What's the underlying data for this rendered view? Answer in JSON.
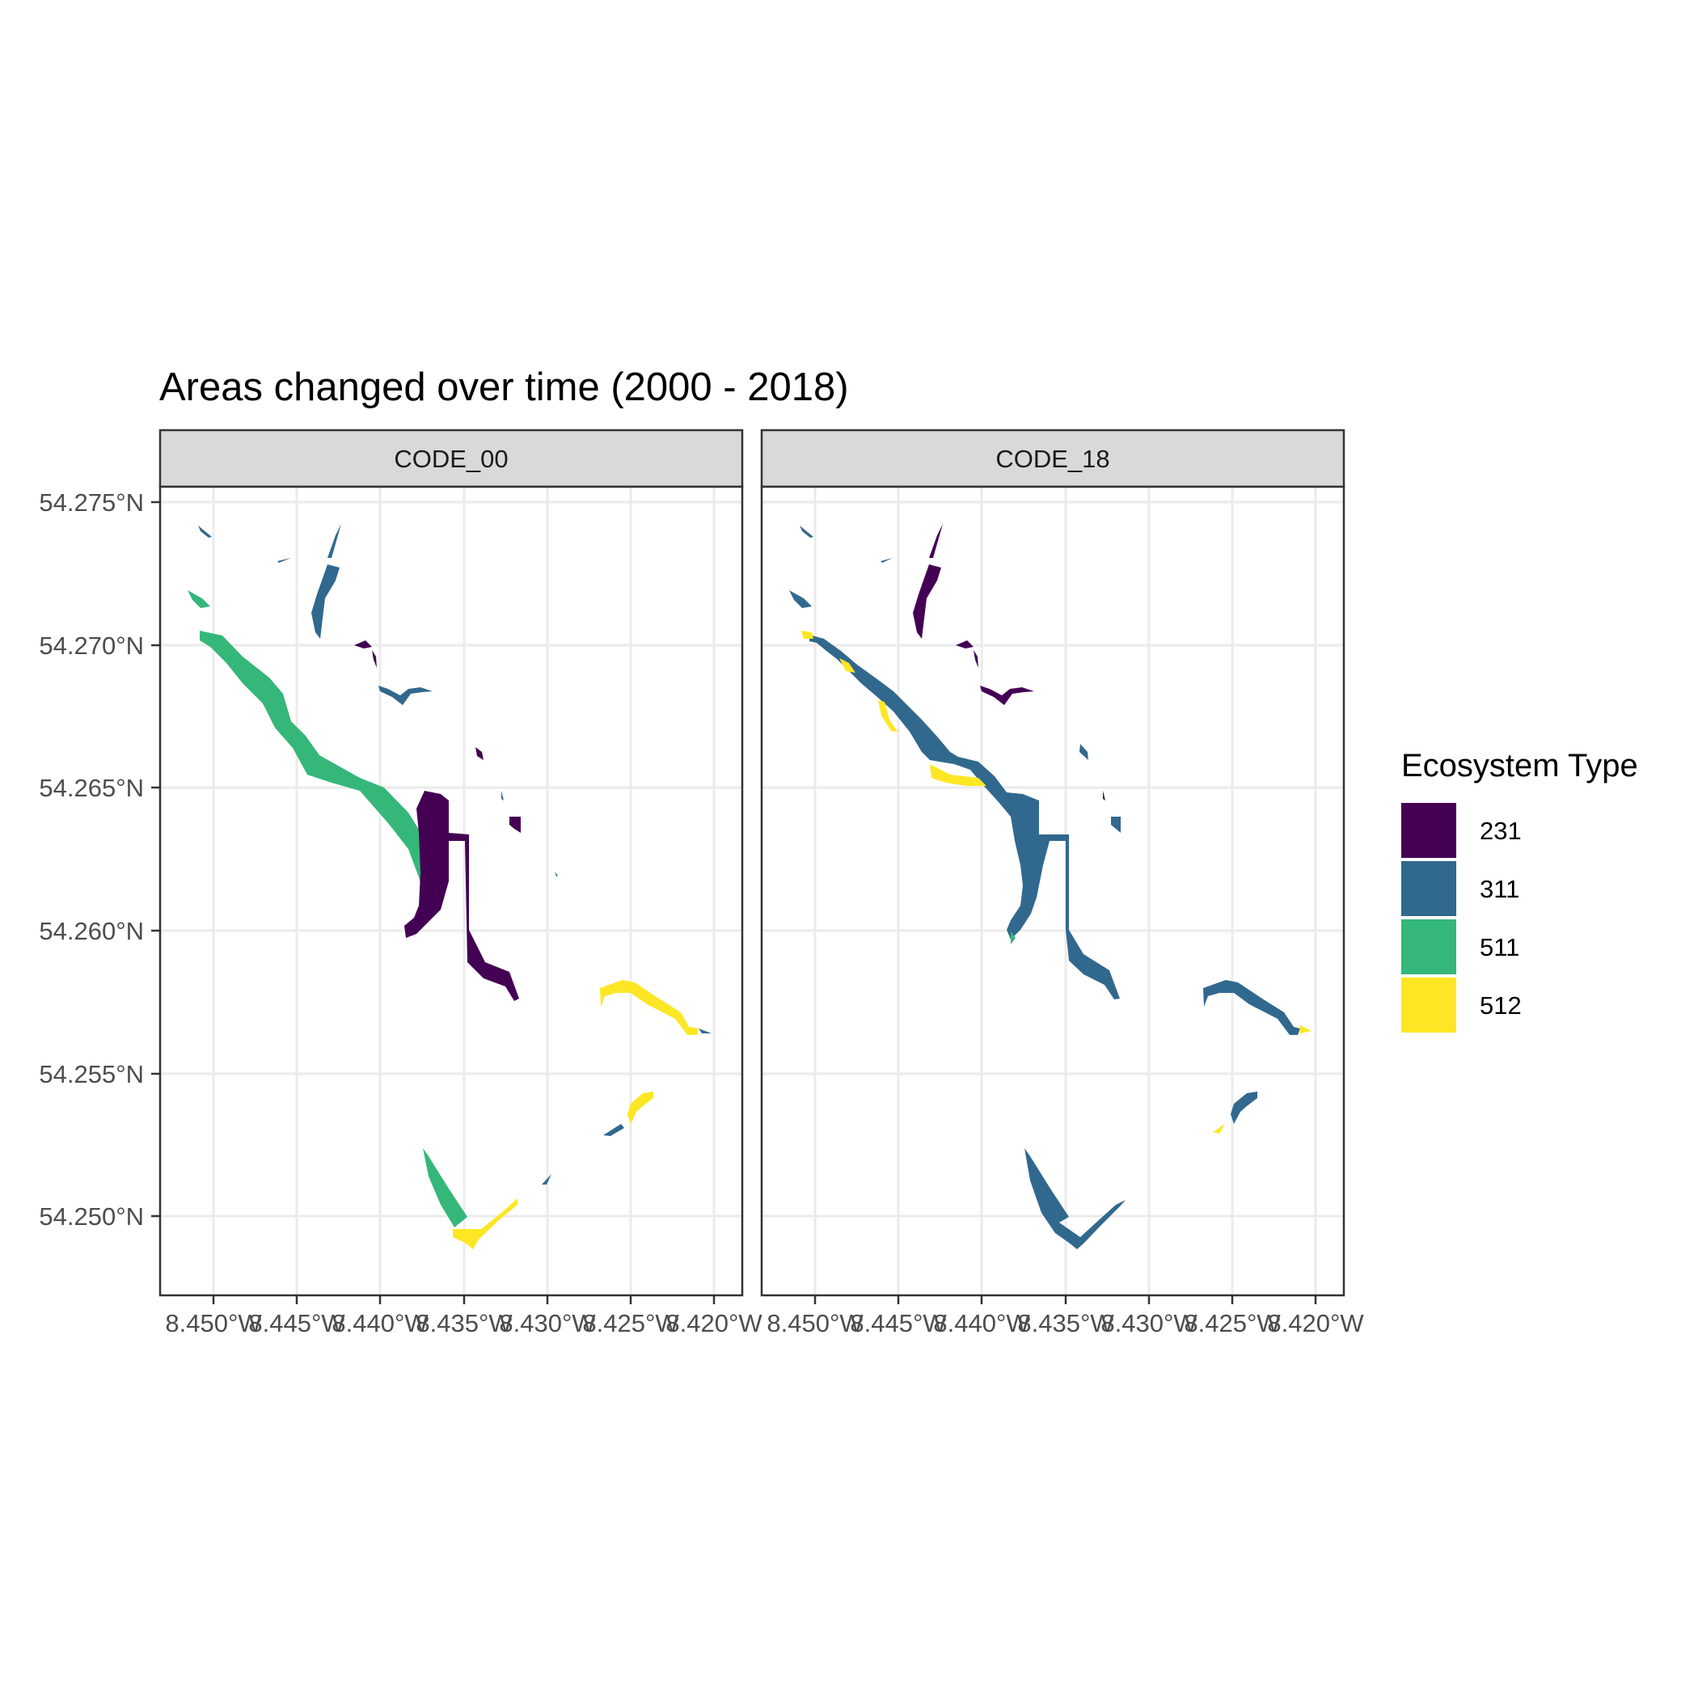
{
  "title": "Areas changed over time (2000 - 2018)",
  "panels": [
    {
      "label": "CODE_00"
    },
    {
      "label": "CODE_18"
    }
  ],
  "axes": {
    "y_ticks": [
      "54.275°N",
      "54.270°N",
      "54.265°N",
      "54.260°N",
      "54.255°N",
      "54.250°N"
    ],
    "x_ticks": [
      "8.450°W",
      "8.445°W",
      "8.440°W",
      "8.435°W",
      "8.430°W",
      "8.425°W",
      "8.420°W"
    ]
  },
  "legend": {
    "title": "Ecosystem Type",
    "items": [
      {
        "label": "231",
        "color": "#440154"
      },
      {
        "label": "311",
        "color": "#31688E"
      },
      {
        "label": "511",
        "color": "#35B779"
      },
      {
        "label": "512",
        "color": "#FDE725"
      }
    ]
  }
}
